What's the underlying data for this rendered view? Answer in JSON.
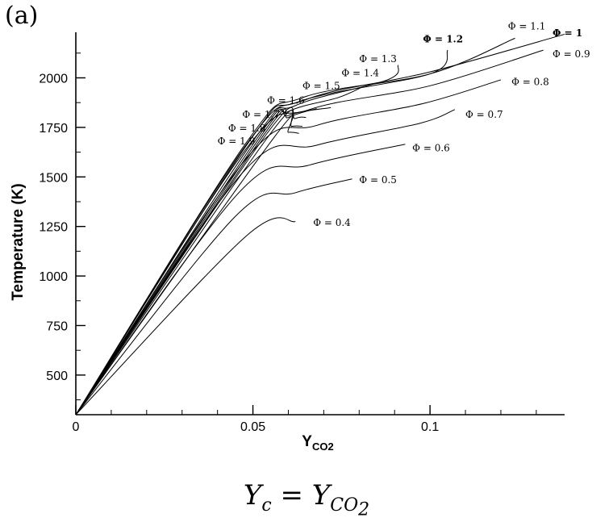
{
  "panel_label": "(a)",
  "caption": {
    "lhs_base": "Y",
    "lhs_sub": "c",
    "equals": "=",
    "rhs_base": "Y",
    "rhs_sub": "CO",
    "rhs_subsub": "2"
  },
  "chart_data": {
    "type": "line",
    "title": "",
    "xlabel": "Y",
    "xlabel_sub": "CO2",
    "ylabel": "Temperature (K)",
    "xlim": [
      0,
      0.138
    ],
    "ylim": [
      300,
      2230
    ],
    "xticks": [
      {
        "value": 0,
        "label": "0"
      },
      {
        "value": 0.05,
        "label": "0.05"
      },
      {
        "value": 0.1,
        "label": "0.1"
      }
    ],
    "x_minor_step": 0.01,
    "yticks": [
      {
        "value": 500,
        "label": "500"
      },
      {
        "value": 750,
        "label": "750"
      },
      {
        "value": 1000,
        "label": "1000"
      },
      {
        "value": 1250,
        "label": "1250"
      },
      {
        "value": 1500,
        "label": "1500"
      },
      {
        "value": 1750,
        "label": "1750"
      },
      {
        "value": 2000,
        "label": "2000"
      }
    ],
    "y_minor_step": 125,
    "grid": false,
    "legend": "none",
    "line_color": "#000000",
    "origin": [
      0,
      300
    ],
    "series": [
      {
        "name": "Φ = 0.4",
        "points": [
          [
            0.0,
            300
          ],
          [
            0.048,
            1200
          ],
          [
            0.062,
            1275
          ]
        ],
        "label_at": [
          0.067,
          1270
        ]
      },
      {
        "name": "Φ = 0.5",
        "points": [
          [
            0.0,
            300
          ],
          [
            0.045,
            1300
          ],
          [
            0.062,
            1420
          ],
          [
            0.078,
            1490
          ]
        ],
        "label_at": [
          0.08,
          1485
        ]
      },
      {
        "name": "Φ = 0.6",
        "points": [
          [
            0.0,
            300
          ],
          [
            0.046,
            1420
          ],
          [
            0.066,
            1560
          ],
          [
            0.093,
            1665
          ]
        ],
        "label_at": [
          0.095,
          1645
        ]
      },
      {
        "name": "Φ = 0.7",
        "points": [
          [
            0.0,
            300
          ],
          [
            0.047,
            1520
          ],
          [
            0.068,
            1660
          ],
          [
            0.097,
            1770
          ],
          [
            0.107,
            1840
          ]
        ],
        "label_at": [
          0.11,
          1815
        ]
      },
      {
        "name": "Φ = 0.8",
        "points": [
          [
            0.0,
            300
          ],
          [
            0.048,
            1590
          ],
          [
            0.068,
            1760
          ],
          [
            0.098,
            1870
          ],
          [
            0.12,
            1990
          ]
        ],
        "label_at": [
          0.123,
          1980
        ]
      },
      {
        "name": "Φ = 0.9",
        "points": [
          [
            0.0,
            300
          ],
          [
            0.048,
            1640
          ],
          [
            0.066,
            1840
          ],
          [
            0.1,
            1960
          ],
          [
            0.132,
            2140
          ]
        ],
        "label_at": [
          0.135,
          2120
        ]
      },
      {
        "name": "Φ = 1",
        "points": [
          [
            0.0,
            300
          ],
          [
            0.048,
            1660
          ],
          [
            0.065,
            1890
          ],
          [
            0.1,
            2030
          ],
          [
            0.138,
            2220
          ]
        ],
        "label_at": [
          0.14,
          2225
        ],
        "bold": true
      },
      {
        "name": "Φ = 1.1",
        "points": [
          [
            0.0,
            300
          ],
          [
            0.048,
            1670
          ],
          [
            0.064,
            1900
          ],
          [
            0.1,
            2020
          ],
          [
            0.124,
            2200
          ]
        ],
        "label_at": [
          0.122,
          2260
        ]
      },
      {
        "name": "Φ = 1.2",
        "points": [
          [
            0.0,
            300
          ],
          [
            0.049,
            1680
          ],
          [
            0.063,
            1880
          ],
          [
            0.1,
            2020
          ],
          [
            0.105,
            2140
          ]
        ],
        "label_at": [
          0.098,
          2195
        ],
        "bold": true
      },
      {
        "name": "Φ = 1.3",
        "points": [
          [
            0.0,
            300
          ],
          [
            0.05,
            1680
          ],
          [
            0.062,
            1860
          ],
          [
            0.088,
            1990
          ],
          [
            0.091,
            2065
          ]
        ],
        "label_at": [
          0.08,
          2095
        ]
      },
      {
        "name": "Φ = 1.4",
        "points": [
          [
            0.0,
            300
          ],
          [
            0.051,
            1690
          ],
          [
            0.06,
            1830
          ],
          [
            0.074,
            1900
          ],
          [
            0.081,
            1955
          ]
        ],
        "label_at": [
          0.075,
          2025
        ]
      },
      {
        "name": "Φ = 1.5",
        "points": [
          [
            0.0,
            300
          ],
          [
            0.052,
            1700
          ],
          [
            0.06,
            1810
          ],
          [
            0.072,
            1850
          ]
        ],
        "label_at": [
          0.064,
          1960
        ]
      },
      {
        "name": "Φ = 1.6",
        "points": [
          [
            0.0,
            300
          ],
          [
            0.053,
            1710
          ],
          [
            0.06,
            1800
          ],
          [
            0.068,
            1845
          ]
        ],
        "label_at": [
          0.054,
          1885
        ]
      },
      {
        "name": "Φ = 1.7",
        "points": [
          [
            0.0,
            300
          ],
          [
            0.054,
            1720
          ],
          [
            0.062,
            1795
          ],
          [
            0.065,
            1800
          ]
        ],
        "label_at": [
          0.047,
          1815
        ]
      },
      {
        "name": "Φ = 1.8",
        "points": [
          [
            0.0,
            300
          ],
          [
            0.055,
            1720
          ],
          [
            0.061,
            1755
          ],
          [
            0.064,
            1755
          ]
        ],
        "label_at": [
          0.043,
          1745
        ]
      },
      {
        "name": "Φ = 1.9",
        "points": [
          [
            0.0,
            300
          ],
          [
            0.056,
            1700
          ],
          [
            0.06,
            1725
          ],
          [
            0.063,
            1720
          ]
        ],
        "label_at": [
          0.04,
          1680
        ]
      }
    ]
  }
}
